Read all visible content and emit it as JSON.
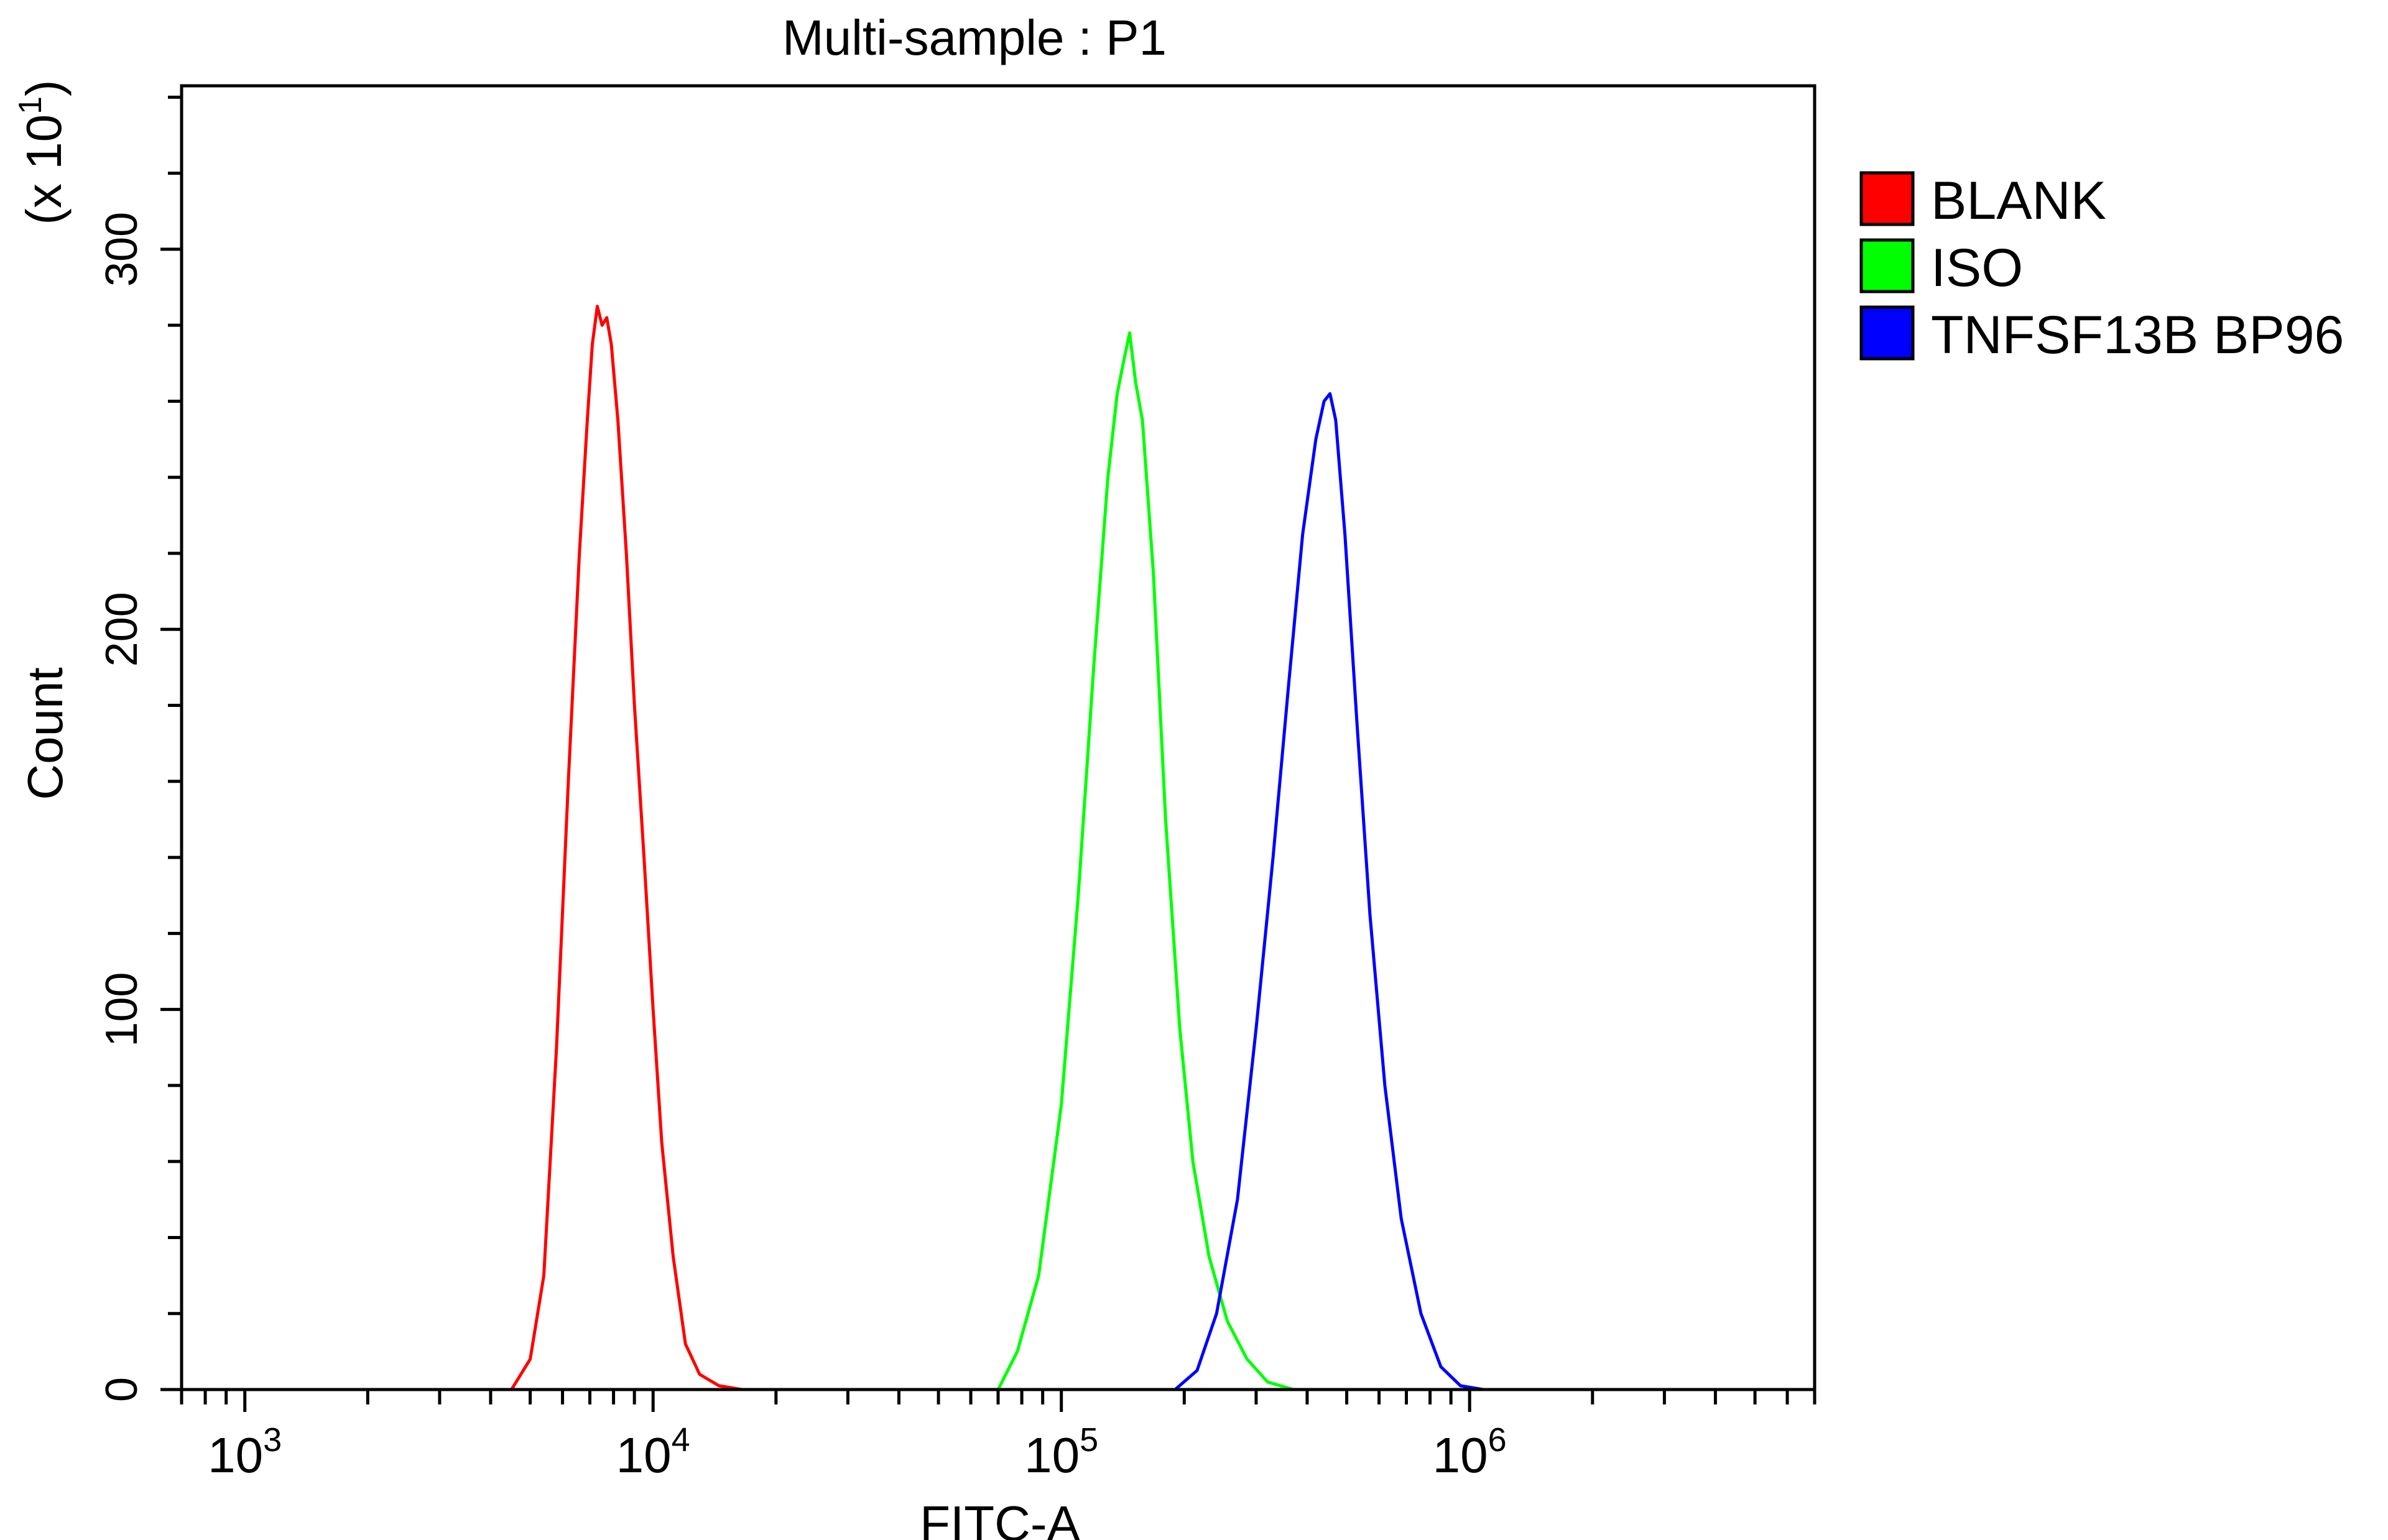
{
  "chart_data": {
    "type": "line",
    "title": "Multi-sample : P1",
    "xlabel": "FITC-A",
    "ylabel": "Count",
    "y_multiplier": "(x 10",
    "y_multiplier_exp": "1",
    "y_multiplier_close": ")",
    "x_scale": "log",
    "xlim": [
      700,
      7000000
    ],
    "ylim": [
      0,
      343
    ],
    "x_ticks": [
      {
        "value": 1000,
        "base": "10",
        "exp": "3"
      },
      {
        "value": 10000,
        "base": "10",
        "exp": "4"
      },
      {
        "value": 100000,
        "base": "10",
        "exp": "5"
      },
      {
        "value": 1000000,
        "base": "10",
        "exp": "6"
      }
    ],
    "y_ticks": [
      {
        "value": 0,
        "label": "0"
      },
      {
        "value": 100,
        "label": "100"
      },
      {
        "value": 200,
        "label": "200"
      },
      {
        "value": 300,
        "label": "300"
      }
    ],
    "grid": false,
    "legend_position": "right",
    "series": [
      {
        "name": "BLANK",
        "color": "#ff0000",
        "x": [
          4500,
          5000,
          5400,
          5800,
          6200,
          6600,
          6900,
          7100,
          7300,
          7500,
          7700,
          7900,
          8200,
          8600,
          9000,
          9500,
          10000,
          10500,
          11200,
          12000,
          13000,
          14500,
          16500
        ],
        "y": [
          0,
          8,
          30,
          90,
          160,
          220,
          255,
          275,
          285,
          280,
          282,
          275,
          255,
          220,
          180,
          140,
          100,
          65,
          35,
          12,
          4,
          1,
          0
        ]
      },
      {
        "name": "ISO",
        "color": "#00ff00",
        "x": [
          70000,
          78000,
          88000,
          100000,
          110000,
          120000,
          130000,
          137000,
          143000,
          147000,
          152000,
          158000,
          168000,
          180000,
          195000,
          210000,
          230000,
          255000,
          285000,
          320000,
          370000
        ],
        "y": [
          0,
          10,
          30,
          75,
          130,
          190,
          240,
          262,
          272,
          278,
          265,
          255,
          215,
          150,
          95,
          60,
          35,
          18,
          8,
          2,
          0
        ]
      },
      {
        "name": "TNFSF13B BP96",
        "color": "#0000ff",
        "x": [
          190000,
          215000,
          240000,
          270000,
          300000,
          330000,
          360000,
          390000,
          420000,
          440000,
          455000,
          470000,
          495000,
          530000,
          570000,
          620000,
          680000,
          760000,
          850000,
          950000,
          1080000
        ],
        "y": [
          0,
          5,
          20,
          50,
          95,
          140,
          185,
          225,
          250,
          260,
          262,
          255,
          225,
          175,
          125,
          80,
          45,
          20,
          6,
          1,
          0
        ]
      }
    ]
  }
}
